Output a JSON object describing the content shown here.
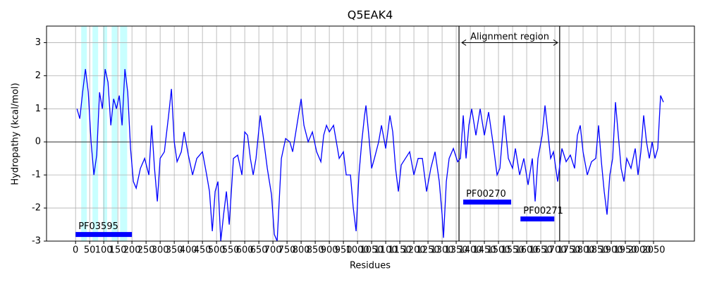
{
  "chart_data": {
    "type": "line",
    "title": "Q5EAK4",
    "x_label": "Residues",
    "y_label": "Hydropathy (kcal/mol)",
    "xlim": [
      -103,
      2195
    ],
    "ylim": [
      -3,
      3.5
    ],
    "xticks": [
      0,
      50,
      100,
      150,
      200,
      250,
      300,
      350,
      400,
      450,
      500,
      550,
      600,
      650,
      700,
      750,
      800,
      850,
      900,
      950,
      1000,
      1050,
      1100,
      1150,
      1200,
      1250,
      1300,
      1350,
      1400,
      1450,
      1500,
      1550,
      1600,
      1650,
      1700,
      1750,
      1800,
      1850,
      1900,
      1950,
      2000,
      2050
    ],
    "yticks": [
      -3,
      -2,
      -1,
      0,
      1,
      2,
      3
    ],
    "grid": true,
    "zero_line": true,
    "series": [
      {
        "name": "Hydropathy",
        "color": "#0000ff",
        "x": [
          5,
          15,
          25,
          35,
          45,
          55,
          65,
          75,
          85,
          95,
          105,
          115,
          125,
          135,
          145,
          155,
          165,
          175,
          185,
          195,
          205,
          215,
          230,
          245,
          260,
          270,
          280,
          290,
          300,
          315,
          330,
          340,
          350,
          360,
          375,
          385,
          400,
          415,
          430,
          450,
          465,
          475,
          485,
          495,
          505,
          515,
          525,
          535,
          545,
          560,
          575,
          590,
          600,
          610,
          620,
          630,
          640,
          655,
          665,
          680,
          695,
          705,
          715,
          730,
          745,
          760,
          770,
          785,
          800,
          810,
          825,
          840,
          855,
          870,
          880,
          890,
          900,
          915,
          925,
          935,
          950,
          960,
          975,
          985,
          995,
          1005,
          1015,
          1025,
          1030,
          1040,
          1050,
          1060,
          1075,
          1085,
          1100,
          1115,
          1125,
          1135,
          1145,
          1155,
          1170,
          1185,
          1200,
          1215,
          1230,
          1245,
          1260,
          1275,
          1290,
          1300,
          1305,
          1315,
          1325,
          1340,
          1355,
          1365,
          1375,
          1385,
          1395,
          1405,
          1420,
          1435,
          1450,
          1465,
          1480,
          1495,
          1505,
          1520,
          1535,
          1550,
          1560,
          1575,
          1590,
          1605,
          1620,
          1630,
          1640,
          1655,
          1665,
          1675,
          1685,
          1695,
          1710,
          1725,
          1740,
          1755,
          1770,
          1780,
          1790,
          1800,
          1815,
          1830,
          1845,
          1855,
          1865,
          1875,
          1885,
          1895,
          1905,
          1915,
          1925,
          1935,
          1945,
          1955,
          1970,
          1985,
          1995,
          2005,
          2015,
          2025,
          2035,
          2045,
          2055,
          2065,
          2075,
          2085
        ],
        "values": [
          1.0,
          0.7,
          1.5,
          2.2,
          1.5,
          0.0,
          -1.0,
          -0.4,
          1.5,
          1.0,
          2.2,
          1.8,
          0.5,
          1.3,
          1.0,
          1.4,
          0.5,
          2.2,
          1.5,
          -0.2,
          -1.2,
          -1.4,
          -0.8,
          -0.5,
          -1.0,
          0.5,
          -0.8,
          -1.8,
          -0.5,
          -0.3,
          0.8,
          1.6,
          0.0,
          -0.6,
          -0.3,
          0.3,
          -0.4,
          -1.0,
          -0.5,
          -0.3,
          -1.0,
          -1.5,
          -2.7,
          -1.5,
          -1.2,
          -3.0,
          -2.2,
          -1.5,
          -2.5,
          -0.5,
          -0.4,
          -1.0,
          0.3,
          0.2,
          -0.5,
          -1.0,
          -0.5,
          0.8,
          0.2,
          -0.8,
          -1.6,
          -2.8,
          -3.0,
          -0.5,
          0.1,
          0.0,
          -0.3,
          0.5,
          1.3,
          0.5,
          0.0,
          0.3,
          -0.3,
          -0.6,
          0.2,
          0.5,
          0.3,
          0.5,
          0.0,
          -0.5,
          -0.3,
          -1.0,
          -1.0,
          -2.0,
          -2.7,
          -1.0,
          0.0,
          0.8,
          1.1,
          0.2,
          -0.8,
          -0.5,
          0.0,
          0.5,
          -0.2,
          0.8,
          0.3,
          -0.8,
          -1.5,
          -0.7,
          -0.5,
          -0.3,
          -1.0,
          -0.5,
          -0.5,
          -1.5,
          -0.8,
          -0.3,
          -1.2,
          -2.2,
          -2.9,
          -1.2,
          -0.5,
          -0.2,
          -0.6,
          -0.5,
          0.8,
          -0.5,
          0.5,
          1.0,
          0.2,
          1.0,
          0.2,
          0.9,
          0.0,
          -1.0,
          -0.8,
          0.8,
          -0.5,
          -0.8,
          -0.2,
          -1.0,
          -0.5,
          -1.3,
          -0.5,
          -1.8,
          -0.5,
          0.2,
          1.1,
          0.3,
          -0.5,
          -0.3,
          -1.2,
          -0.2,
          -0.6,
          -0.4,
          -0.8,
          0.2,
          0.5,
          -0.3,
          -1.0,
          -0.6,
          -0.5,
          0.5,
          -0.6,
          -1.5,
          -2.2,
          -1.0,
          -0.5,
          1.2,
          0.2,
          -0.8,
          -1.2,
          -0.5,
          -0.8,
          -0.2,
          -1.0,
          -0.3,
          0.8,
          0.0,
          -0.5,
          0.0,
          -0.5,
          -0.2,
          1.4,
          1.2
        ]
      }
    ],
    "highlight_color": "#c8ffff",
    "highlights": [
      [
        20,
        40
      ],
      [
        60,
        80
      ],
      [
        97,
        112
      ],
      [
        128,
        148
      ],
      [
        158,
        183
      ]
    ],
    "alignment_region": {
      "label": "Alignment region",
      "start": 1360,
      "end": 1717,
      "arrow_start": 1370,
      "arrow_end": 1710,
      "arrow_y": 3
    },
    "domains": [
      {
        "name": "PF03595",
        "start": 0,
        "end": 200,
        "y": -2.8
      },
      {
        "name": "PF00270",
        "start": 1375,
        "end": 1545,
        "y": -1.82
      },
      {
        "name": "PF00271",
        "start": 1578,
        "end": 1698,
        "y": -2.33
      }
    ]
  }
}
